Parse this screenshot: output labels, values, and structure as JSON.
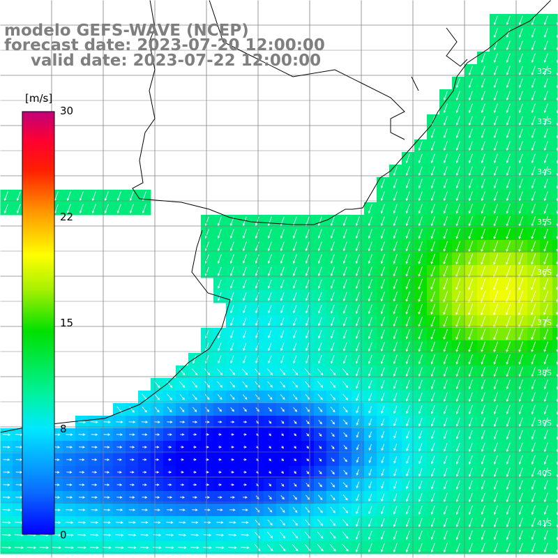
{
  "title": {
    "line1": "modelo GEFS-WAVE (NCEP)",
    "line2": "forecast date: 2023-07-20 12:00:00",
    "line3": "valid date: 2023-07-22 12:00:00"
  },
  "colorbar": {
    "unit": "[m/s]",
    "ticks": [
      "30",
      "22",
      "15",
      "8",
      "0"
    ],
    "tick_values": [
      30,
      22,
      15,
      8,
      0
    ],
    "colors": [
      "#0000ff",
      "#0a7cff",
      "#00e0ff",
      "#00f2a0",
      "#00e000",
      "#c0f000",
      "#ffff00",
      "#ff9a00",
      "#ff3000",
      "#ff0000",
      "#c0006a"
    ]
  },
  "lat_labels": [
    "32S",
    "33S",
    "34S",
    "35S",
    "36S",
    "37S",
    "38S",
    "39S",
    "40S",
    "41S"
  ],
  "colors": {
    "land": "#ffffff",
    "coastline": "#000000",
    "grid": "#808080",
    "arrows": "#ffffff",
    "title": "#7f7f7f"
  }
}
